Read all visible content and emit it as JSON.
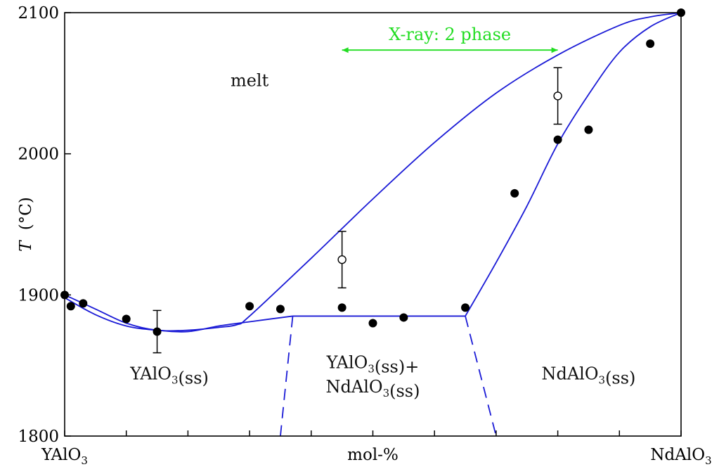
{
  "chart_data": {
    "type": "scatter",
    "title": "",
    "xlabel": "mol-%",
    "ylabel": "T (°C)",
    "ylabel_parts": {
      "symbol": "T",
      "unit": "(°C)"
    },
    "x_endpoints": [
      "YAlO3",
      "NdAlO3"
    ],
    "x_end_labels": [
      {
        "base": "YAlO",
        "sub": "3"
      },
      {
        "base": "NdAlO",
        "sub": "3"
      }
    ],
    "xlim": [
      0,
      100
    ],
    "ylim": [
      1800,
      2100
    ],
    "x_ticks": [
      0,
      10,
      20,
      30,
      40,
      50,
      60,
      70,
      80,
      90,
      100
    ],
    "y_ticks": [
      1800,
      1900,
      2000,
      2100
    ],
    "y_tick_labels": [
      "1800",
      "1900",
      "2000",
      "2100"
    ],
    "grid": false,
    "line_color": "#1a1ad6",
    "annotation_color": "#22dd22",
    "measured_points": [
      {
        "x": 0,
        "y": 1900
      },
      {
        "x": 1,
        "y": 1892
      },
      {
        "x": 3,
        "y": 1894
      },
      {
        "x": 10,
        "y": 1883
      },
      {
        "x": 15,
        "y": 1874
      },
      {
        "x": 30,
        "y": 1892
      },
      {
        "x": 35,
        "y": 1890
      },
      {
        "x": 45,
        "y": 1891
      },
      {
        "x": 50,
        "y": 1880
      },
      {
        "x": 55,
        "y": 1884
      },
      {
        "x": 65,
        "y": 1891
      },
      {
        "x": 73,
        "y": 1972
      },
      {
        "x": 80,
        "y": 2010
      },
      {
        "x": 85,
        "y": 2017
      },
      {
        "x": 95,
        "y": 2078
      },
      {
        "x": 100,
        "y": 2100
      }
    ],
    "open_points": [
      {
        "x": 45,
        "y": 1925,
        "err": 20
      },
      {
        "x": 80,
        "y": 2041,
        "err": 20
      }
    ],
    "error_bars_on_filled": [
      {
        "x": 15,
        "y": 1874,
        "err": 15
      }
    ],
    "liquidus": [
      [
        0,
        1900
      ],
      [
        5,
        1890
      ],
      [
        10,
        1880
      ],
      [
        15,
        1875
      ],
      [
        20,
        1875
      ],
      [
        25,
        1877
      ],
      [
        28,
        1879
      ],
      [
        30,
        1885
      ],
      [
        40,
        1926
      ],
      [
        50,
        1968
      ],
      [
        60,
        2008
      ],
      [
        70,
        2043
      ],
      [
        80,
        2070
      ],
      [
        90,
        2091
      ],
      [
        95,
        2097
      ],
      [
        100,
        2100
      ]
    ],
    "solidus_left": [
      [
        0,
        1898
      ],
      [
        5,
        1886
      ],
      [
        10,
        1878
      ],
      [
        15,
        1875
      ],
      [
        20,
        1874
      ],
      [
        25,
        1878
      ],
      [
        30,
        1881
      ],
      [
        37,
        1885
      ]
    ],
    "solidus_right": [
      [
        65,
        1885
      ],
      [
        70,
        1923
      ],
      [
        75,
        1963
      ],
      [
        80,
        2007
      ],
      [
        85,
        2042
      ],
      [
        90,
        2072
      ],
      [
        95,
        2090
      ],
      [
        100,
        2100
      ]
    ],
    "eutectic_line": [
      [
        37,
        1885
      ],
      [
        65,
        1885
      ]
    ],
    "solvus_left": [
      [
        37,
        1885
      ],
      [
        35,
        1800
      ]
    ],
    "solvus_right": [
      [
        65,
        1885
      ],
      [
        70,
        1800
      ]
    ],
    "xray_range": {
      "x_start": 45,
      "x_end": 80,
      "y": 2070,
      "label": "X-ray: 2 phase"
    },
    "region_labels": [
      {
        "id": "melt",
        "text": "melt",
        "x": 30,
        "y": 2048
      },
      {
        "id": "yalo3-ss",
        "parts": [
          {
            "t": "YAlO",
            "s": "3"
          },
          {
            "t": "(ss)"
          }
        ],
        "x": 17,
        "y": 1840
      },
      {
        "id": "two-phase-1",
        "parts": [
          {
            "t": "YAlO",
            "s": "3"
          },
          {
            "t": "(ss)+"
          }
        ],
        "x": 50,
        "y": 1848
      },
      {
        "id": "two-phase-2",
        "parts": [
          {
            "t": "NdAlO",
            "s": "3"
          },
          {
            "t": "(ss)"
          }
        ],
        "x": 50,
        "y": 1831
      },
      {
        "id": "ndalo3-ss",
        "parts": [
          {
            "t": "NdAlO",
            "s": "3"
          },
          {
            "t": "(ss)"
          }
        ],
        "x": 85,
        "y": 1840
      }
    ]
  }
}
